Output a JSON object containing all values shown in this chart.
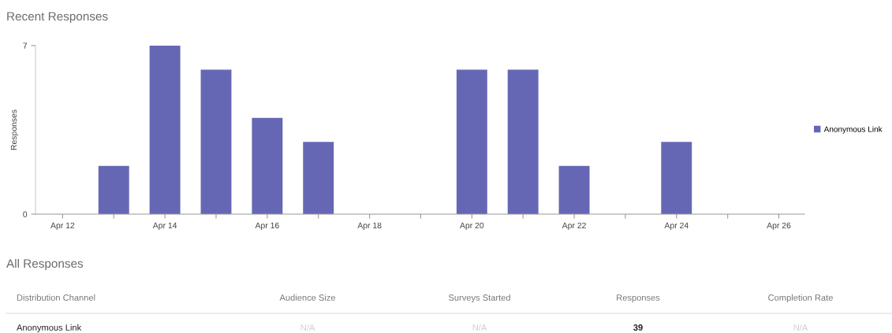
{
  "chart_data": [
    {
      "type": "bar",
      "title": "Recent Responses",
      "ylabel": "Responses",
      "categories": [
        "Apr 12",
        null,
        "Apr 14",
        null,
        "Apr 16",
        null,
        "Apr 18",
        null,
        "Apr 20",
        null,
        "Apr 22",
        null,
        "Apr 24",
        null,
        "Apr 26"
      ],
      "series": [
        {
          "name": "Anonymous Link",
          "color": "#6667b4",
          "values": [
            0,
            2,
            7,
            6,
            4,
            3,
            0,
            0,
            6,
            6,
            2,
            0,
            3,
            0,
            0
          ]
        }
      ],
      "ylim": [
        0,
        7
      ],
      "yticks": [
        0,
        7
      ],
      "grid": false,
      "legend": "right"
    },
    {
      "type": "other",
      "title": "All Responses",
      "annotations": [
        "Distribution Channel",
        "Audience Size",
        "Surveys Started",
        "Responses",
        "Completion Rate",
        "Anonymous Link",
        "N/A",
        "N/A",
        "39",
        "N/A"
      ]
    }
  ]
}
